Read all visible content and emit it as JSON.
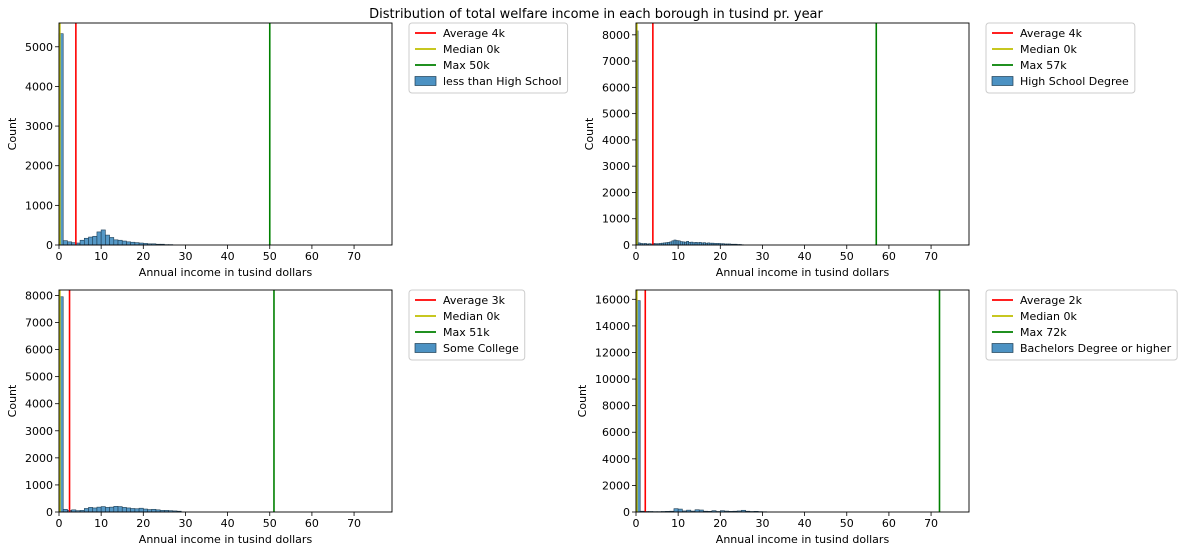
{
  "figure_title": "Distribution of total welfare income in each borough in tusind pr. year",
  "chart_data": [
    {
      "type": "histogram",
      "xlabel": "Annual income in tusind dollars",
      "ylabel": "Count",
      "xlim": [
        0,
        79
      ],
      "ylim": [
        0,
        5600
      ],
      "xticks": [
        0,
        10,
        20,
        30,
        40,
        50,
        60,
        70
      ],
      "yticks": [
        0,
        1000,
        2000,
        3000,
        4000,
        5000
      ],
      "bin_width": 1,
      "bins": [
        [
          0,
          5330
        ],
        [
          1,
          110
        ],
        [
          2,
          80
        ],
        [
          3,
          60
        ],
        [
          4,
          50
        ],
        [
          5,
          120
        ],
        [
          6,
          170
        ],
        [
          7,
          200
        ],
        [
          8,
          220
        ],
        [
          9,
          330
        ],
        [
          10,
          380
        ],
        [
          11,
          250
        ],
        [
          12,
          190
        ],
        [
          13,
          130
        ],
        [
          14,
          120
        ],
        [
          15,
          100
        ],
        [
          16,
          80
        ],
        [
          17,
          70
        ],
        [
          18,
          60
        ],
        [
          19,
          50
        ],
        [
          20,
          40
        ],
        [
          21,
          30
        ],
        [
          22,
          30
        ],
        [
          23,
          20
        ],
        [
          24,
          20
        ],
        [
          25,
          10
        ],
        [
          26,
          10
        ]
      ],
      "lines": [
        {
          "label": "Average 4k",
          "x": 4,
          "color": "#ff0000"
        },
        {
          "label": "Median 0k",
          "x": 0,
          "color": "#bfbf00"
        },
        {
          "label": "Max 50k",
          "x": 50,
          "color": "#008000"
        }
      ],
      "series_name": "less than High School",
      "bar_color": "#4c92c3",
      "legend": "outside-right"
    },
    {
      "type": "histogram",
      "xlabel": "Annual income in tusind dollars",
      "ylabel": "Count",
      "xlim": [
        0,
        79
      ],
      "ylim": [
        0,
        8450
      ],
      "xticks": [
        0,
        10,
        20,
        30,
        40,
        50,
        60,
        70
      ],
      "yticks": [
        0,
        1000,
        2000,
        3000,
        4000,
        5000,
        6000,
        7000,
        8000
      ],
      "bin_width": 0.5,
      "bins": [
        [
          0,
          8150
        ],
        [
          0.5,
          80
        ],
        [
          1,
          60
        ],
        [
          1.5,
          50
        ],
        [
          2,
          60
        ],
        [
          2.5,
          40
        ],
        [
          3,
          50
        ],
        [
          3.5,
          40
        ],
        [
          4,
          60
        ],
        [
          4.5,
          50
        ],
        [
          5,
          50
        ],
        [
          5.5,
          60
        ],
        [
          6,
          70
        ],
        [
          6.5,
          80
        ],
        [
          7,
          90
        ],
        [
          7.5,
          100
        ],
        [
          8,
          120
        ],
        [
          8.5,
          160
        ],
        [
          9,
          190
        ],
        [
          9.5,
          170
        ],
        [
          10,
          160
        ],
        [
          10.5,
          130
        ],
        [
          11,
          120
        ],
        [
          11.5,
          110
        ],
        [
          12,
          140
        ],
        [
          12.5,
          100
        ],
        [
          13,
          110
        ],
        [
          13.5,
          90
        ],
        [
          14,
          100
        ],
        [
          14.5,
          90
        ],
        [
          15,
          100
        ],
        [
          15.5,
          80
        ],
        [
          16,
          90
        ],
        [
          16.5,
          70
        ],
        [
          17,
          80
        ],
        [
          17.5,
          70
        ],
        [
          18,
          70
        ],
        [
          18.5,
          60
        ],
        [
          19,
          60
        ],
        [
          19.5,
          60
        ],
        [
          20,
          50
        ],
        [
          20.5,
          50
        ],
        [
          21,
          40
        ],
        [
          21.5,
          40
        ],
        [
          22,
          40
        ],
        [
          22.5,
          30
        ],
        [
          23,
          30
        ],
        [
          23.5,
          30
        ],
        [
          24,
          20
        ],
        [
          24.5,
          20
        ],
        [
          25,
          10
        ]
      ],
      "lines": [
        {
          "label": "Average 4k",
          "x": 4,
          "color": "#ff0000"
        },
        {
          "label": "Median 0k",
          "x": 0,
          "color": "#bfbf00"
        },
        {
          "label": "Max 57k",
          "x": 57,
          "color": "#008000"
        }
      ],
      "series_name": "High School Degree",
      "bar_color": "#4c92c3",
      "legend": "outside-right"
    },
    {
      "type": "histogram",
      "xlabel": "Annual income in tusind dollars",
      "ylabel": "Count",
      "xlim": [
        0,
        79
      ],
      "ylim": [
        0,
        8200
      ],
      "xticks": [
        0,
        10,
        20,
        30,
        40,
        50,
        60,
        70
      ],
      "yticks": [
        0,
        1000,
        2000,
        3000,
        4000,
        5000,
        6000,
        7000,
        8000
      ],
      "bin_width": 1,
      "bins": [
        [
          0,
          7950
        ],
        [
          1,
          100
        ],
        [
          2,
          60
        ],
        [
          3,
          80
        ],
        [
          4,
          50
        ],
        [
          5,
          60
        ],
        [
          6,
          130
        ],
        [
          7,
          170
        ],
        [
          8,
          150
        ],
        [
          9,
          180
        ],
        [
          10,
          200
        ],
        [
          11,
          170
        ],
        [
          12,
          180
        ],
        [
          13,
          210
        ],
        [
          14,
          200
        ],
        [
          15,
          170
        ],
        [
          16,
          150
        ],
        [
          17,
          130
        ],
        [
          18,
          120
        ],
        [
          19,
          140
        ],
        [
          20,
          110
        ],
        [
          21,
          90
        ],
        [
          22,
          100
        ],
        [
          23,
          80
        ],
        [
          24,
          60
        ],
        [
          25,
          60
        ],
        [
          26,
          50
        ],
        [
          27,
          40
        ],
        [
          28,
          30
        ]
      ],
      "lines": [
        {
          "label": "Average 3k",
          "x": 2.5,
          "color": "#ff0000"
        },
        {
          "label": "Median 0k",
          "x": 0,
          "color": "#bfbf00"
        },
        {
          "label": "Max 51k",
          "x": 51,
          "color": "#008000"
        }
      ],
      "series_name": "Some College",
      "bar_color": "#4c92c3",
      "legend": "outside-right"
    },
    {
      "type": "histogram",
      "xlabel": "Annual income in tusind dollars",
      "ylabel": "Count",
      "xlim": [
        0,
        79
      ],
      "ylim": [
        0,
        16700
      ],
      "xticks": [
        0,
        10,
        20,
        30,
        40,
        50,
        60,
        70
      ],
      "yticks": [
        0,
        2000,
        4000,
        6000,
        8000,
        10000,
        12000,
        14000,
        16000
      ],
      "bin_width": 1,
      "bins": [
        [
          0,
          15900
        ],
        [
          1,
          60
        ],
        [
          2,
          40
        ],
        [
          3,
          40
        ],
        [
          4,
          30
        ],
        [
          5,
          30
        ],
        [
          6,
          40
        ],
        [
          7,
          50
        ],
        [
          8,
          60
        ],
        [
          9,
          250
        ],
        [
          10,
          220
        ],
        [
          11,
          80
        ],
        [
          12,
          140
        ],
        [
          13,
          70
        ],
        [
          14,
          170
        ],
        [
          15,
          150
        ],
        [
          16,
          60
        ],
        [
          17,
          50
        ],
        [
          18,
          100
        ],
        [
          19,
          40
        ],
        [
          20,
          100
        ],
        [
          21,
          70
        ],
        [
          22,
          50
        ],
        [
          23,
          60
        ],
        [
          24,
          80
        ],
        [
          25,
          130
        ],
        [
          26,
          60
        ],
        [
          27,
          40
        ],
        [
          28,
          50
        ],
        [
          29,
          30
        ],
        [
          30,
          20
        ]
      ],
      "lines": [
        {
          "label": "Average 2k",
          "x": 2.2,
          "color": "#ff0000"
        },
        {
          "label": "Median 0k",
          "x": 0,
          "color": "#bfbf00"
        },
        {
          "label": "Max 72k",
          "x": 72,
          "color": "#008000"
        }
      ],
      "series_name": "Bachelors Degree or higher",
      "bar_color": "#4c92c3",
      "legend": "outside-right"
    }
  ]
}
